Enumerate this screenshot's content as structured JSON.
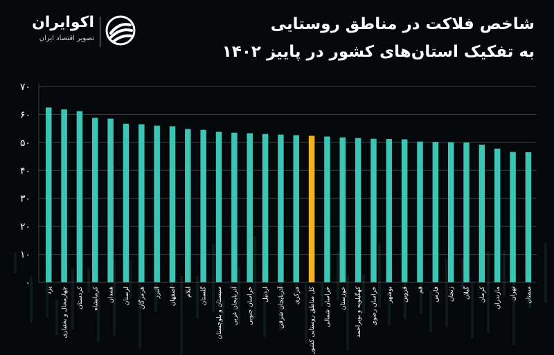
{
  "title": {
    "line1": "شاخص فلاکت در مناطق روستایی",
    "line2": "به تفکیک استان‌های کشور در پاییز ۱۴۰۲"
  },
  "brand": {
    "name": "اکوایران",
    "tagline": "تصویر اقتصاد ایران"
  },
  "colors": {
    "background": "#05080a",
    "bar": "#3cc4b4",
    "highlight": "#f5b21b",
    "grid": "#3a4044",
    "text": "#ffffff"
  },
  "chart_data": {
    "type": "bar",
    "categories": [
      "یزد",
      "چهارمحال و بختیاری",
      "کردستان",
      "کرمانشاه",
      "همدان",
      "لرستان",
      "هرمزگان",
      "البرز",
      "اصفهان",
      "ایلام",
      "گلستان",
      "سیستان و بلوچستان",
      "آذربایجان غربی",
      "خراسان جنوبی",
      "اردبیل",
      "آذربایجان شرقی",
      "مرکزی",
      "کل مناطق روستایی کشور",
      "خراسان شمالی",
      "خوزستان",
      "کهگیلویه و بویراحمد",
      "خراسان رضوی",
      "بوشهر",
      "قزوین",
      "قم",
      "فارس",
      "زنجان",
      "گیلان",
      "کرمان",
      "مازندران",
      "تهران",
      "سمنان"
    ],
    "values": [
      62.5,
      61.8,
      61.2,
      58.8,
      58.5,
      56.7,
      56.5,
      56.0,
      55.8,
      54.8,
      54.5,
      53.8,
      53.5,
      53.3,
      53.0,
      52.8,
      52.6,
      52.4,
      52.1,
      51.8,
      51.6,
      51.3,
      51.2,
      51.1,
      50.3,
      50.2,
      50.1,
      50.0,
      49.2,
      47.8,
      46.6,
      46.5
    ],
    "highlight_category": "کل مناطق روستایی کشور",
    "y_ticks": [
      "۰",
      "۱۰",
      "۲۰",
      "۳۰",
      "۴۰",
      "۵۰",
      "۶۰",
      "۷۰"
    ],
    "ylim": [
      0,
      70
    ],
    "grid": true,
    "title": "شاخص فلاکت در مناطق روستایی به تفکیک استان‌های کشور در پاییز ۱۴۰۲",
    "xlabel": "",
    "ylabel": ""
  }
}
